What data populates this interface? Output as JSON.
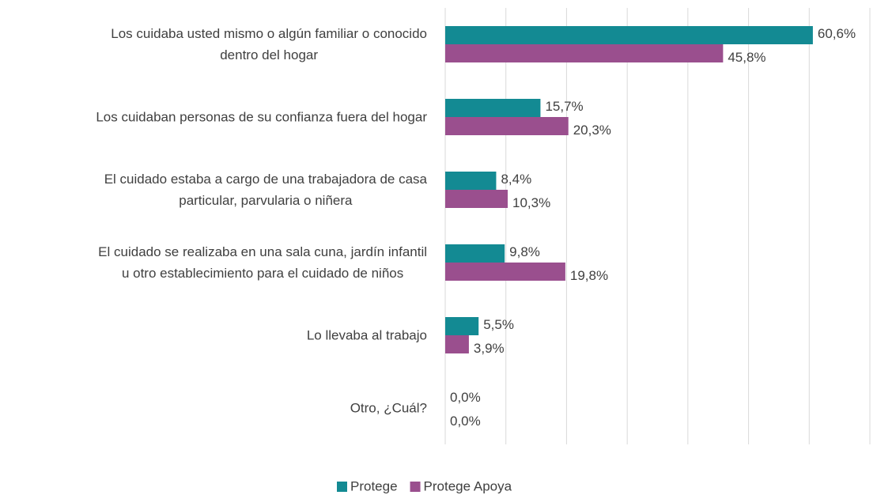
{
  "chart_data": {
    "type": "hbar",
    "categories": [
      "Los cuidaba usted mismo o algún familiar o conocido\ndentro del hogar",
      "Los cuidaban personas de su confianza fuera del hogar",
      "El cuidado estaba a cargo de una trabajadora de casa\nparticular, parvularia o niñera",
      "El cuidado se realizaba en una sala cuna, jardín infantil\nu otro establecimiento para el cuidado de niños",
      "Lo llevaba al trabajo",
      "Otro, ¿Cuál?"
    ],
    "series": [
      {
        "name": "Protege",
        "color": "#138a93",
        "values": [
          60.6,
          15.7,
          8.4,
          9.8,
          5.5,
          0.0
        ],
        "value_labels": [
          "60,6%",
          "15,7%",
          "8,4%",
          "9,8%",
          "5,5%",
          "0,0%"
        ]
      },
      {
        "name": "Protege Apoya",
        "color": "#9a4f8e",
        "values": [
          45.8,
          20.3,
          10.3,
          19.8,
          3.9,
          0.0
        ],
        "value_labels": [
          "45,8%",
          "20,3%",
          "10,3%",
          "19,8%",
          "3,9%",
          "0,0%"
        ]
      }
    ],
    "xlim": [
      0,
      70
    ],
    "xticks": [
      0,
      10,
      20,
      30,
      40,
      50,
      60,
      70
    ],
    "grid": true
  }
}
